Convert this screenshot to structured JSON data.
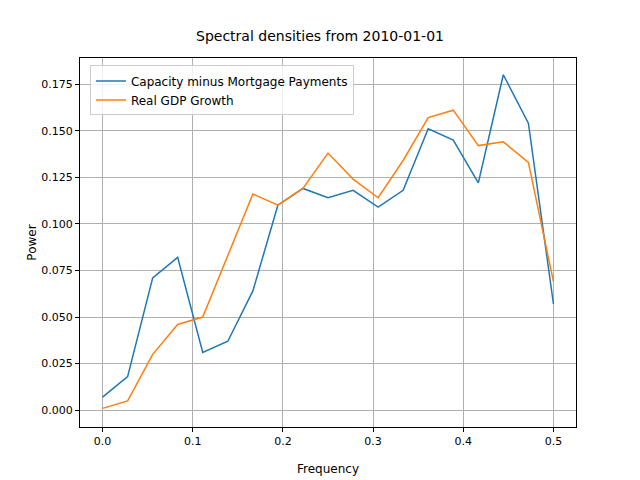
{
  "chart_data": {
    "type": "line",
    "title": "Spectral densities from 2010-01-01",
    "x_label": "Frequency",
    "y_label": "Power",
    "x": [
      0,
      0.0278,
      0.0556,
      0.0833,
      0.1111,
      0.1389,
      0.1667,
      0.1944,
      0.2222,
      0.25,
      0.2778,
      0.3056,
      0.3333,
      0.3611,
      0.3889,
      0.4167,
      0.4444,
      0.4722,
      0.5
    ],
    "series": [
      {
        "name": "Capacity minus Mortgage Payments",
        "color": "#1f77b4",
        "values": [
          0.007,
          0.018,
          0.071,
          0.082,
          0.031,
          0.037,
          0.064,
          0.11,
          0.119,
          0.114,
          0.118,
          0.109,
          0.118,
          0.151,
          0.145,
          0.122,
          0.18,
          0.154,
          0.057
        ]
      },
      {
        "name": "Real GDP Growth",
        "color": "#ff7f0e",
        "values": [
          0.001,
          0.005,
          0.03,
          0.046,
          0.05,
          0.083,
          0.116,
          0.11,
          0.119,
          0.138,
          0.124,
          0.114,
          0.134,
          0.157,
          0.161,
          0.142,
          0.144,
          0.133,
          0.069
        ]
      }
    ],
    "xlim": [
      -0.025,
      0.525
    ],
    "xticks": [
      {
        "value": 0,
        "label": "0.0"
      },
      {
        "value": 0.1,
        "label": "0.1"
      },
      {
        "value": 0.2,
        "label": "0.2"
      },
      {
        "value": 0.3,
        "label": "0.3"
      },
      {
        "value": 0.4,
        "label": "0.4"
      },
      {
        "value": 0.5,
        "label": "0.5"
      }
    ],
    "ylim": [
      -0.009,
      0.189
    ],
    "yticks": [
      {
        "value": 0,
        "label": "0.000"
      },
      {
        "value": 0.025,
        "label": "0.025"
      },
      {
        "value": 0.05,
        "label": "0.050"
      },
      {
        "value": 0.075,
        "label": "0.075"
      },
      {
        "value": 0.1,
        "label": "0.100"
      },
      {
        "value": 0.125,
        "label": "0.125"
      },
      {
        "value": 0.15,
        "label": "0.150"
      },
      {
        "value": 0.175,
        "label": "0.175"
      }
    ],
    "grid": true,
    "legend": "upper left"
  }
}
